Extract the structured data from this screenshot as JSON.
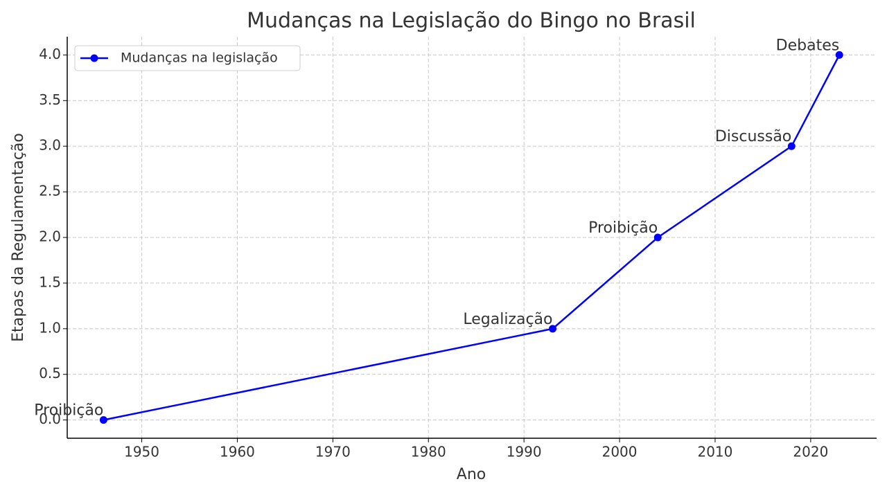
{
  "chart_data": {
    "type": "line",
    "title": "Mudanças na Legislação do Bingo no Brasil",
    "x_label": "Ano",
    "y_label": "Etapas da Regulamentação",
    "x": [
      1946,
      1993,
      2004,
      2018,
      2023
    ],
    "series": [
      {
        "name": "Mudanças na legislação",
        "color": "#0000ff",
        "values": [
          0,
          1,
          2,
          3,
          4
        ],
        "point_labels": [
          "Proibição",
          "Legalização",
          "Proibição",
          "Discussão",
          "Debates"
        ]
      }
    ],
    "xlim": [
      1942.2,
      2026.9
    ],
    "ylim": [
      -0.2,
      4.2
    ],
    "xticks": [
      1950,
      1960,
      1970,
      1980,
      1990,
      2000,
      2010,
      2020
    ],
    "yticks": [
      {
        "value": 0,
        "label": "0.0"
      },
      0.5,
      {
        "value": 1,
        "label": "1.0"
      },
      1.5,
      {
        "value": 2,
        "label": "2.0"
      },
      2.5,
      {
        "value": 3,
        "label": "3.0"
      },
      3.5,
      {
        "value": 4,
        "label": "4.0"
      }
    ],
    "grid": true,
    "legend": "upper-left"
  }
}
